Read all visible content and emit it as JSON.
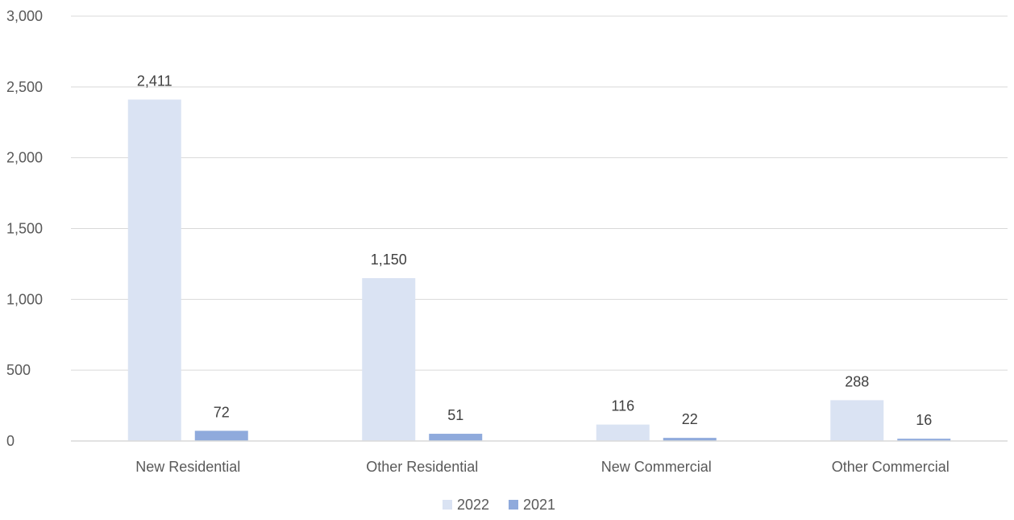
{
  "chart_data": {
    "type": "bar",
    "title": "",
    "xlabel": "",
    "ylabel": "",
    "categories": [
      "New Residential",
      "Other Residential",
      "New Commercial",
      "Other Commercial"
    ],
    "series": [
      {
        "name": "2022",
        "color": "#dae3f3",
        "values": [
          2411,
          1150,
          116,
          288
        ],
        "labels": [
          "2,411",
          "1,150",
          "116",
          "288"
        ]
      },
      {
        "name": "2021",
        "color": "#8faadc",
        "values": [
          72,
          51,
          22,
          16
        ],
        "labels": [
          "72",
          "51",
          "22",
          "16"
        ]
      }
    ],
    "ylim": [
      0,
      3000
    ],
    "yticks": [
      0,
      500,
      1000,
      1500,
      2000,
      2500,
      3000
    ],
    "ytick_labels": [
      "0",
      "500",
      "1,000",
      "1,500",
      "2,000",
      "2,500",
      "3,000"
    ],
    "grid": true,
    "legend_position": "bottom",
    "gridline_color": "#d9d9d9"
  }
}
